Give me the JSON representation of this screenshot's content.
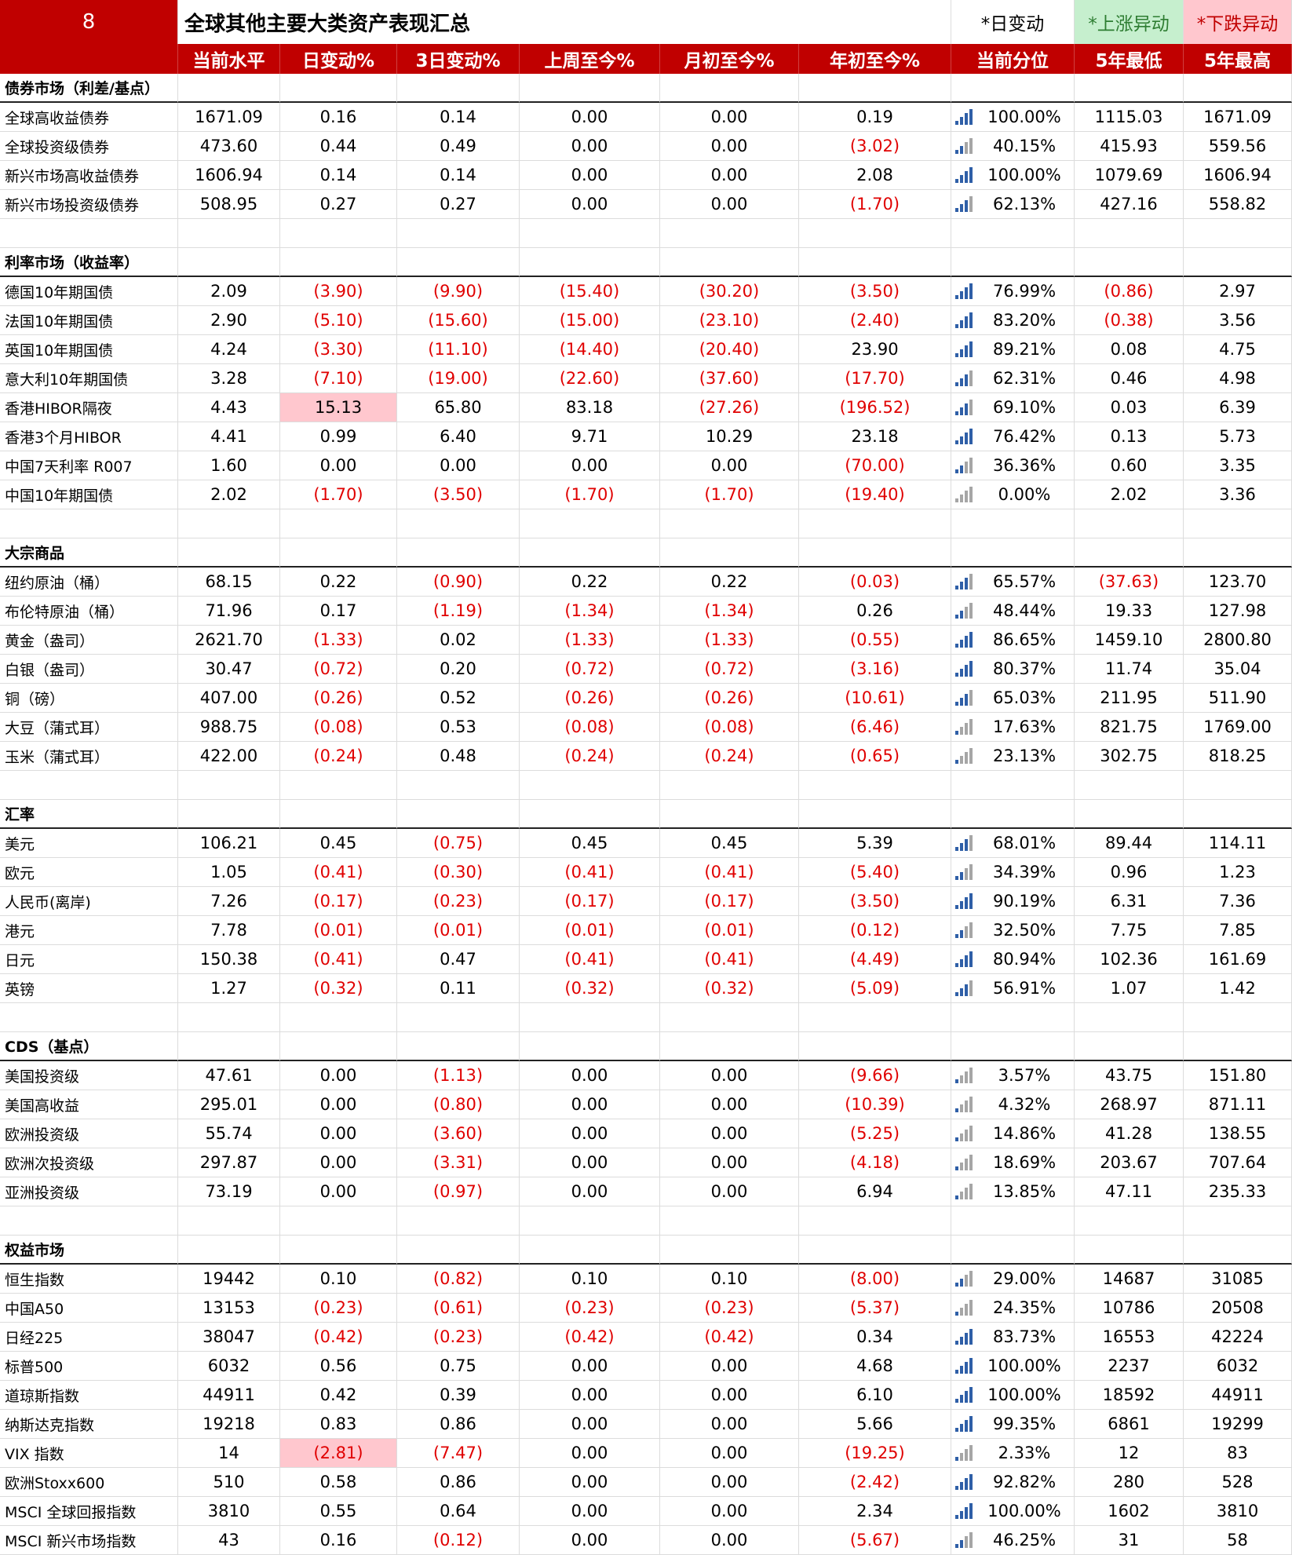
{
  "header": {
    "number": "8",
    "title": "全球其他主要大类资产表现汇总",
    "legend": [
      "*日变动",
      "*上涨异动",
      "*下跌异动"
    ]
  },
  "table": {
    "columns": [
      "当前水平",
      "日变动%",
      "3日变动%",
      "上周至今%",
      "月初至今%",
      "年初至今%",
      "当前分位",
      "5年最低",
      "5年最高"
    ],
    "sections": [
      {
        "title": "债券市场（利差/基点）",
        "rows": [
          {
            "name": "全球高收益债券",
            "cells": [
              "1671.09",
              "0.16",
              "0.14",
              "0.00",
              "0.00",
              "0.19",
              "100.00%",
              "1115.03",
              "1671.09"
            ]
          },
          {
            "name": "全球投资级债券",
            "cells": [
              "473.60",
              "0.44",
              "0.49",
              "0.00",
              "0.00",
              "(3.02)",
              "40.15%",
              "415.93",
              "559.56"
            ]
          },
          {
            "name": "新兴市场高收益债券",
            "cells": [
              "1606.94",
              "0.14",
              "0.14",
              "0.00",
              "0.00",
              "2.08",
              "100.00%",
              "1079.69",
              "1606.94"
            ]
          },
          {
            "name": "新兴市场投资级债券",
            "cells": [
              "508.95",
              "0.27",
              "0.27",
              "0.00",
              "0.00",
              "(1.70)",
              "62.13%",
              "427.16",
              "558.82"
            ]
          }
        ]
      },
      {
        "title": "利率市场（收益率）",
        "rows": [
          {
            "name": "德国10年期国债",
            "cells": [
              "2.09",
              "(3.90)",
              "(9.90)",
              "(15.40)",
              "(30.20)",
              "(3.50)",
              "76.99%",
              "(0.86)",
              "2.97"
            ]
          },
          {
            "name": "法国10年期国债",
            "cells": [
              "2.90",
              "(5.10)",
              "(15.60)",
              "(15.00)",
              "(23.10)",
              "(2.40)",
              "83.20%",
              "(0.38)",
              "3.56"
            ]
          },
          {
            "name": "英国10年期国债",
            "cells": [
              "4.24",
              "(3.30)",
              "(11.10)",
              "(14.40)",
              "(20.40)",
              "23.90",
              "89.21%",
              "0.08",
              "4.75"
            ]
          },
          {
            "name": "意大利10年期国债",
            "cells": [
              "3.28",
              "(7.10)",
              "(19.00)",
              "(22.60)",
              "(37.60)",
              "(17.70)",
              "62.31%",
              "0.46",
              "4.98"
            ]
          },
          {
            "name": "香港HIBOR隔夜",
            "cells": [
              "4.43",
              "15.13",
              "65.80",
              "83.18",
              "(27.26)",
              "(196.52)",
              "69.10%",
              "0.03",
              "6.39"
            ],
            "highlight": 1
          },
          {
            "name": "香港3个月HIBOR",
            "cells": [
              "4.41",
              "0.99",
              "6.40",
              "9.71",
              "10.29",
              "23.18",
              "76.42%",
              "0.13",
              "5.73"
            ]
          },
          {
            "name": "中国7天利率 R007",
            "cells": [
              "1.60",
              "0.00",
              "0.00",
              "0.00",
              "0.00",
              "(70.00)",
              "36.36%",
              "0.60",
              "3.35"
            ]
          },
          {
            "name": "中国10年期国债",
            "cells": [
              "2.02",
              "(1.70)",
              "(3.50)",
              "(1.70)",
              "(1.70)",
              "(19.40)",
              "0.00%",
              "2.02",
              "3.36"
            ]
          }
        ]
      },
      {
        "title": "大宗商品",
        "rows": [
          {
            "name": "纽约原油（桶）",
            "cells": [
              "68.15",
              "0.22",
              "(0.90)",
              "0.22",
              "0.22",
              "(0.03)",
              "65.57%",
              "(37.63)",
              "123.70"
            ]
          },
          {
            "name": "布伦特原油（桶）",
            "cells": [
              "71.96",
              "0.17",
              "(1.19)",
              "(1.34)",
              "(1.34)",
              "0.26",
              "48.44%",
              "19.33",
              "127.98"
            ]
          },
          {
            "name": "黄金（盎司）",
            "cells": [
              "2621.70",
              "(1.33)",
              "0.02",
              "(1.33)",
              "(1.33)",
              "(0.55)",
              "86.65%",
              "1459.10",
              "2800.80"
            ]
          },
          {
            "name": "白银（盎司）",
            "cells": [
              "30.47",
              "(0.72)",
              "0.20",
              "(0.72)",
              "(0.72)",
              "(3.16)",
              "80.37%",
              "11.74",
              "35.04"
            ]
          },
          {
            "name": "铜（磅）",
            "cells": [
              "407.00",
              "(0.26)",
              "0.52",
              "(0.26)",
              "(0.26)",
              "(10.61)",
              "65.03%",
              "211.95",
              "511.90"
            ]
          },
          {
            "name": "大豆（蒲式耳）",
            "cells": [
              "988.75",
              "(0.08)",
              "0.53",
              "(0.08)",
              "(0.08)",
              "(6.46)",
              "17.63%",
              "821.75",
              "1769.00"
            ]
          },
          {
            "name": "玉米（蒲式耳）",
            "cells": [
              "422.00",
              "(0.24)",
              "0.48",
              "(0.24)",
              "(0.24)",
              "(0.65)",
              "23.13%",
              "302.75",
              "818.25"
            ]
          }
        ]
      },
      {
        "title": "汇率",
        "rows": [
          {
            "name": "美元",
            "cells": [
              "106.21",
              "0.45",
              "(0.75)",
              "0.45",
              "0.45",
              "5.39",
              "68.01%",
              "89.44",
              "114.11"
            ]
          },
          {
            "name": "欧元",
            "cells": [
              "1.05",
              "(0.41)",
              "(0.30)",
              "(0.41)",
              "(0.41)",
              "(5.40)",
              "34.39%",
              "0.96",
              "1.23"
            ]
          },
          {
            "name": "人民币(离岸)",
            "cells": [
              "7.26",
              "(0.17)",
              "(0.23)",
              "(0.17)",
              "(0.17)",
              "(3.50)",
              "90.19%",
              "6.31",
              "7.36"
            ]
          },
          {
            "name": "港元",
            "cells": [
              "7.78",
              "(0.01)",
              "(0.01)",
              "(0.01)",
              "(0.01)",
              "(0.12)",
              "32.50%",
              "7.75",
              "7.85"
            ]
          },
          {
            "name": "日元",
            "cells": [
              "150.38",
              "(0.41)",
              "0.47",
              "(0.41)",
              "(0.41)",
              "(4.49)",
              "80.94%",
              "102.36",
              "161.69"
            ]
          },
          {
            "name": "英镑",
            "cells": [
              "1.27",
              "(0.32)",
              "0.11",
              "(0.32)",
              "(0.32)",
              "(5.09)",
              "56.91%",
              "1.07",
              "1.42"
            ]
          }
        ]
      },
      {
        "title": "CDS（基点）",
        "rows": [
          {
            "name": "美国投资级",
            "cells": [
              "47.61",
              "0.00",
              "(1.13)",
              "0.00",
              "0.00",
              "(9.66)",
              "3.57%",
              "43.75",
              "151.80"
            ]
          },
          {
            "name": "美国高收益",
            "cells": [
              "295.01",
              "0.00",
              "(0.80)",
              "0.00",
              "0.00",
              "(10.39)",
              "4.32%",
              "268.97",
              "871.11"
            ]
          },
          {
            "name": "欧洲投资级",
            "cells": [
              "55.74",
              "0.00",
              "(3.60)",
              "0.00",
              "0.00",
              "(5.25)",
              "14.86%",
              "41.28",
              "138.55"
            ]
          },
          {
            "name": "欧洲次投资级",
            "cells": [
              "297.87",
              "0.00",
              "(3.31)",
              "0.00",
              "0.00",
              "(4.18)",
              "18.69%",
              "203.67",
              "707.64"
            ]
          },
          {
            "name": "亚洲投资级",
            "cells": [
              "73.19",
              "0.00",
              "(0.97)",
              "0.00",
              "0.00",
              "6.94",
              "13.85%",
              "47.11",
              "235.33"
            ]
          }
        ]
      },
      {
        "title": "权益市场",
        "rows": [
          {
            "name": "恒生指数",
            "cells": [
              "19442",
              "0.10",
              "(0.82)",
              "0.10",
              "0.10",
              "(8.00)",
              "29.00%",
              "14687",
              "31085"
            ]
          },
          {
            "name": "中国A50",
            "cells": [
              "13153",
              "(0.23)",
              "(0.61)",
              "(0.23)",
              "(0.23)",
              "(5.37)",
              "24.35%",
              "10786",
              "20508"
            ]
          },
          {
            "name": "日经225",
            "cells": [
              "38047",
              "(0.42)",
              "(0.23)",
              "(0.42)",
              "(0.42)",
              "0.34",
              "83.73%",
              "16553",
              "42224"
            ]
          },
          {
            "name": "标普500",
            "cells": [
              "6032",
              "0.56",
              "0.75",
              "0.00",
              "0.00",
              "4.68",
              "100.00%",
              "2237",
              "6032"
            ]
          },
          {
            "name": "道琼斯指数",
            "cells": [
              "44911",
              "0.42",
              "0.39",
              "0.00",
              "0.00",
              "6.10",
              "100.00%",
              "18592",
              "44911"
            ]
          },
          {
            "name": "纳斯达克指数",
            "cells": [
              "19218",
              "0.83",
              "0.86",
              "0.00",
              "0.00",
              "5.66",
              "99.35%",
              "6861",
              "19299"
            ]
          },
          {
            "name": "VIX 指数",
            "cells": [
              "14",
              "(2.81)",
              "(7.47)",
              "0.00",
              "0.00",
              "(19.25)",
              "2.33%",
              "12",
              "83"
            ],
            "highlight": 1
          },
          {
            "name": "欧洲Stoxx600",
            "cells": [
              "510",
              "0.58",
              "0.86",
              "0.00",
              "0.00",
              "(2.42)",
              "92.82%",
              "280",
              "528"
            ]
          },
          {
            "name": "MSCI 全球回报指数",
            "cells": [
              "3810",
              "0.55",
              "0.64",
              "0.00",
              "0.00",
              "2.34",
              "100.00%",
              "1602",
              "3810"
            ]
          },
          {
            "name": "MSCI 新兴市场指数",
            "cells": [
              "43",
              "0.16",
              "(0.12)",
              "0.00",
              "0.00",
              "(5.67)",
              "46.25%",
              "31",
              "58"
            ]
          }
        ]
      }
    ]
  }
}
